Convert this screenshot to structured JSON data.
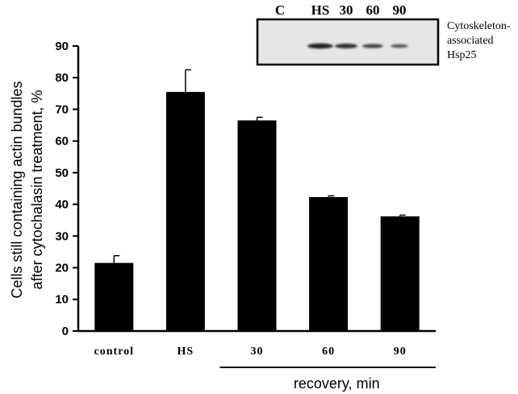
{
  "chart_data": {
    "type": "bar",
    "ylabel": [
      "Cells still containing actin bundles",
      "after cytochalasin treatment, %"
    ],
    "categories": [
      "control",
      "HS",
      "30",
      "60",
      "90"
    ],
    "values": [
      21.5,
      75.5,
      66.5,
      42.3,
      36.2
    ],
    "errors": [
      2.3,
      7,
      1,
      0.4,
      0.4
    ],
    "color": "#000000",
    "ylim": [
      0,
      90
    ],
    "yticks": [
      0,
      10,
      20,
      30,
      40,
      50,
      60,
      70,
      80,
      90
    ],
    "grid": false,
    "x_group_label": "recovery, min",
    "inset": {
      "lanes": [
        "C",
        "HS",
        "30",
        "60",
        "90"
      ],
      "caption": [
        "Cytoskeleton-",
        "associated",
        "Hsp25"
      ]
    }
  }
}
